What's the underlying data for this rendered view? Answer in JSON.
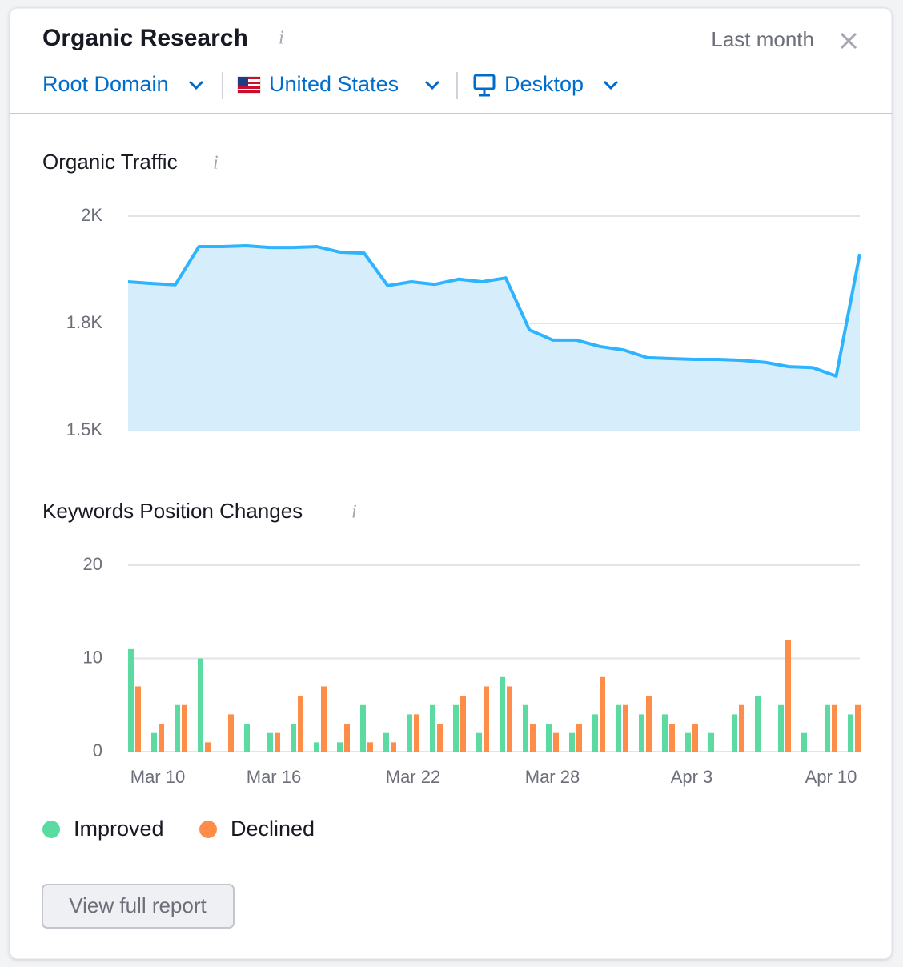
{
  "header": {
    "title": "Organic Research",
    "period": "Last month",
    "filters": [
      "Root Domain",
      "United States",
      "Desktop"
    ]
  },
  "chart_data": [
    {
      "type": "area",
      "title": "Organic Traffic",
      "color": "#2eb3ff",
      "fill": "#d6eefc",
      "values": [
        1847,
        1843,
        1840,
        1929,
        1929,
        1931,
        1927,
        1927,
        1929,
        1916,
        1914,
        1838,
        1847,
        1841,
        1853,
        1847,
        1856,
        1735,
        1711,
        1711,
        1696,
        1688,
        1670,
        1668,
        1666,
        1666,
        1664,
        1659,
        1649,
        1647,
        1627,
        1912
      ],
      "ylim": [
        1500,
        2000
      ],
      "yticks": [
        {
          "value": 1500,
          "label": "1.5K"
        },
        {
          "value": 1750,
          "label": "1.8K"
        },
        {
          "value": 2000,
          "label": "2K"
        }
      ],
      "grid": true
    },
    {
      "type": "bar",
      "title": "Keywords Position Changes",
      "categories": [
        null,
        "Mar 10",
        null,
        null,
        null,
        null,
        "Mar 16",
        null,
        null,
        null,
        null,
        null,
        "Mar 22",
        null,
        null,
        null,
        null,
        null,
        "Mar 28",
        null,
        null,
        null,
        null,
        null,
        "Apr 3",
        null,
        null,
        null,
        null,
        null,
        "Apr 10",
        null
      ],
      "series": [
        {
          "name": "Improved",
          "color": "#5bdba2",
          "values": [
            11,
            2,
            5,
            10,
            0,
            3,
            2,
            3,
            1,
            1,
            5,
            2,
            4,
            5,
            5,
            2,
            8,
            5,
            3,
            2,
            4,
            5,
            4,
            4,
            2,
            2,
            4,
            6,
            5,
            2,
            5,
            4
          ]
        },
        {
          "name": "Declined",
          "color": "#ff8d4a",
          "values": [
            7,
            3,
            5,
            1,
            4,
            0,
            2,
            6,
            7,
            3,
            1,
            1,
            4,
            3,
            6,
            7,
            7,
            3,
            2,
            3,
            8,
            5,
            6,
            3,
            3,
            0,
            5,
            0,
            12,
            0,
            5,
            5
          ]
        }
      ],
      "ylim": [
        0,
        20
      ],
      "yticks": [
        0,
        10,
        20
      ],
      "grid": true,
      "legend": "bottom"
    }
  ],
  "button": "View full report"
}
